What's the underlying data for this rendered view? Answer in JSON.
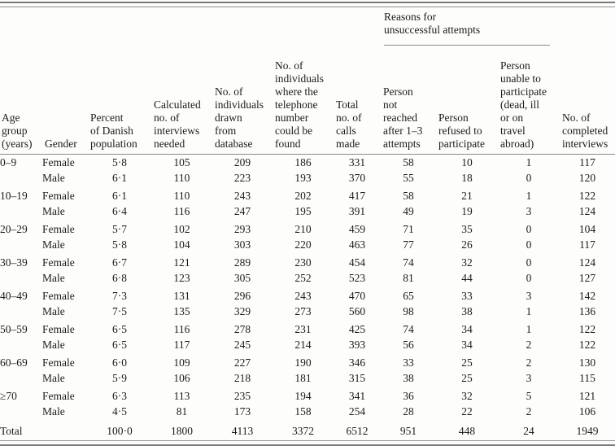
{
  "table": {
    "group_header": {
      "label": "Reasons for\nunsuccessful attempts"
    },
    "columns": [
      "Age\ngroup\n(years)",
      "Gender",
      "Percent\nof Danish\npopulation",
      "Calculated\nno. of\ninterviews\nneeded",
      "No. of\nindividuals\ndrawn\nfrom\ndatabase",
      "No. of\nindividuals\nwhere the\ntelephone\nnumber\ncould be\nfound",
      "Total\nno. of\ncalls\nmade",
      "Person\nnot\nreached\nafter 1–3\nattempts",
      "Person\nrefused to\nparticipate",
      "Person\nunable to\nparticipate\n(dead, ill\nor on\ntravel\nabroad)",
      "No. of\ncompleted\ninterviews"
    ],
    "rows": [
      {
        "age": "0–9",
        "gender": "Female",
        "group_start": false,
        "values": [
          "5·8",
          "105",
          "209",
          "186",
          "331",
          "58",
          "10",
          "1",
          "117"
        ]
      },
      {
        "age": "",
        "gender": "Male",
        "group_start": false,
        "values": [
          "6·1",
          "110",
          "223",
          "193",
          "370",
          "55",
          "18",
          "0",
          "120"
        ]
      },
      {
        "age": "10–19",
        "gender": "Female",
        "group_start": true,
        "values": [
          "6·1",
          "110",
          "243",
          "202",
          "417",
          "58",
          "21",
          "1",
          "122"
        ]
      },
      {
        "age": "",
        "gender": "Male",
        "group_start": false,
        "values": [
          "6·4",
          "116",
          "247",
          "195",
          "391",
          "49",
          "19",
          "3",
          "124"
        ]
      },
      {
        "age": "20–29",
        "gender": "Female",
        "group_start": true,
        "values": [
          "5·7",
          "102",
          "293",
          "210",
          "459",
          "71",
          "35",
          "0",
          "104"
        ]
      },
      {
        "age": "",
        "gender": "Male",
        "group_start": false,
        "values": [
          "5·8",
          "104",
          "303",
          "220",
          "463",
          "77",
          "26",
          "0",
          "117"
        ]
      },
      {
        "age": "30–39",
        "gender": "Female",
        "group_start": true,
        "values": [
          "6·7",
          "121",
          "289",
          "230",
          "454",
          "74",
          "32",
          "0",
          "124"
        ]
      },
      {
        "age": "",
        "gender": "Male",
        "group_start": false,
        "values": [
          "6·8",
          "123",
          "305",
          "252",
          "523",
          "81",
          "44",
          "0",
          "127"
        ]
      },
      {
        "age": "40–49",
        "gender": "Female",
        "group_start": true,
        "values": [
          "7·3",
          "131",
          "296",
          "243",
          "470",
          "65",
          "33",
          "3",
          "142"
        ]
      },
      {
        "age": "",
        "gender": "Male",
        "group_start": false,
        "values": [
          "7·5",
          "135",
          "329",
          "273",
          "560",
          "98",
          "38",
          "1",
          "136"
        ]
      },
      {
        "age": "50–59",
        "gender": "Female",
        "group_start": true,
        "values": [
          "6·5",
          "116",
          "278",
          "231",
          "425",
          "74",
          "34",
          "1",
          "122"
        ]
      },
      {
        "age": "",
        "gender": "Male",
        "group_start": false,
        "values": [
          "6·5",
          "117",
          "245",
          "214",
          "393",
          "56",
          "34",
          "2",
          "122"
        ]
      },
      {
        "age": "60–69",
        "gender": "Female",
        "group_start": true,
        "values": [
          "6·0",
          "109",
          "227",
          "190",
          "346",
          "33",
          "25",
          "2",
          "130"
        ]
      },
      {
        "age": "",
        "gender": "Male",
        "group_start": false,
        "values": [
          "5·9",
          "106",
          "218",
          "181",
          "315",
          "38",
          "25",
          "3",
          "115"
        ]
      },
      {
        "age": "≥70",
        "gender": "Female",
        "group_start": true,
        "values": [
          "6·3",
          "113",
          "235",
          "194",
          "341",
          "36",
          "32",
          "5",
          "121"
        ]
      },
      {
        "age": "",
        "gender": "Male",
        "group_start": false,
        "values": [
          "4·5",
          "81",
          "173",
          "158",
          "254",
          "28",
          "22",
          "2",
          "106"
        ]
      }
    ],
    "total_row": {
      "label": "Total",
      "values": [
        "100·0",
        "1800",
        "4113",
        "3372",
        "6512",
        "951",
        "448",
        "24",
        "1949"
      ]
    }
  }
}
